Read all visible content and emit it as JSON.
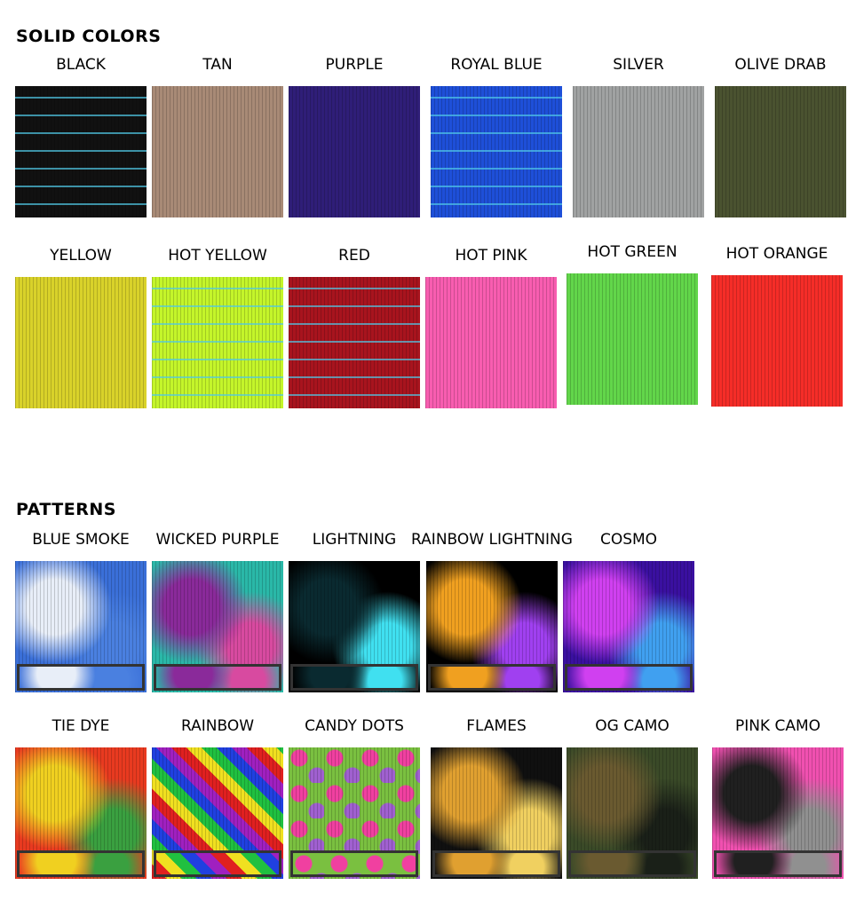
{
  "solid": {
    "heading": "Solid Colors",
    "items": [
      {
        "label": "BLACK",
        "color": "#111111",
        "stitch": true
      },
      {
        "label": "TAN",
        "color": "#a88a76"
      },
      {
        "label": "PURPLE",
        "color": "#2f1e78"
      },
      {
        "label": "ROYAL BLUE",
        "color": "#1e4fd8",
        "stitch": true
      },
      {
        "label": "SILVER",
        "color": "#a0a2a2"
      },
      {
        "label": "OLIVE DRAB",
        "color": "#4a5230"
      },
      {
        "label": "YELLOW",
        "color": "#d9d22a"
      },
      {
        "label": "HOT YELLOW",
        "color": "#c4f52a",
        "stitch": true
      },
      {
        "label": "RED",
        "color": "#a8141e",
        "stitch": true
      },
      {
        "label": "HOT PINK",
        "color": "#f85db0"
      },
      {
        "label": "HOT GREEN",
        "color": "#62d64a"
      },
      {
        "label": "HOT ORANGE",
        "color": "#f52d28"
      }
    ]
  },
  "patterns": {
    "heading": "Patterns",
    "items": [
      {
        "label": "BLUE SMOKE",
        "colors": [
          "#3a6fd8",
          "#e8eef8",
          "#4a80e0"
        ]
      },
      {
        "label": "WICKED PURPLE",
        "colors": [
          "#2ab8a8",
          "#8a2a9a",
          "#d84aa0"
        ]
      },
      {
        "label": "LIGHTNING",
        "colors": [
          "#000000",
          "#0a2a30",
          "#40e0f0"
        ]
      },
      {
        "label": "RAINBOW LIGHTNING",
        "colors": [
          "#000000",
          "#f0a020",
          "#a040f0"
        ]
      },
      {
        "label": "COSMO",
        "colors": [
          "#3a10a0",
          "#d040f0",
          "#40a0f0"
        ]
      },
      {
        "label": "TIE DYE",
        "colors": [
          "#e83a20",
          "#f0d020",
          "#3aa040"
        ]
      },
      {
        "label": "RAINBOW",
        "colors": [
          "#e02020",
          "#f0e020",
          "#20c040",
          "#2040e0",
          "#a020c0"
        ]
      },
      {
        "label": "CANDY DOTS",
        "colors": [
          "#7ac040",
          "#f040a0",
          "#a060d0"
        ]
      },
      {
        "label": "FLAMES",
        "colors": [
          "#101010",
          "#e0a030",
          "#f0d060"
        ]
      },
      {
        "label": "OG CAMO",
        "colors": [
          "#3a4a28",
          "#6a5a30",
          "#1a2018"
        ]
      },
      {
        "label": "PINK CAMO",
        "colors": [
          "#f050b0",
          "#202020",
          "#909090"
        ]
      }
    ]
  }
}
